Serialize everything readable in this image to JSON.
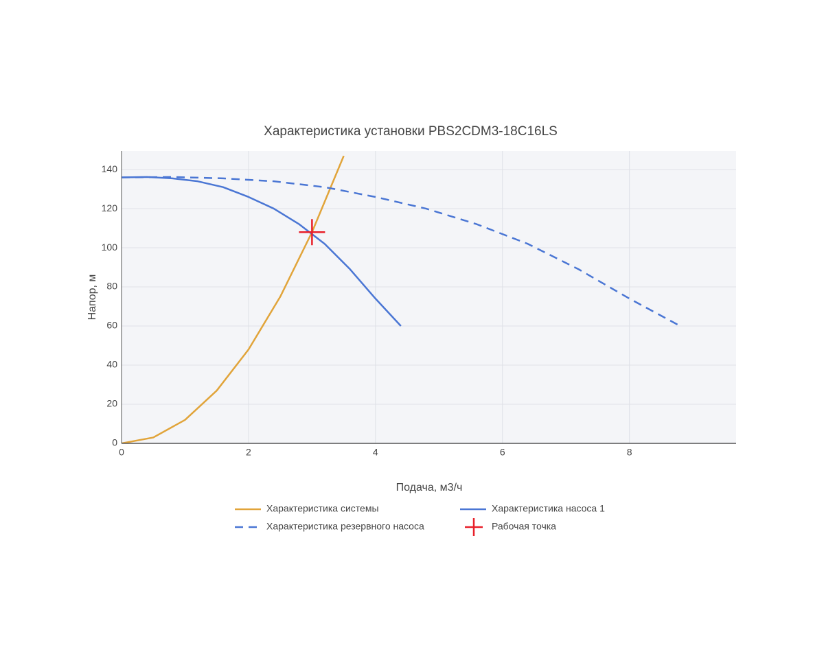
{
  "chart_data": {
    "type": "line",
    "title": "Характеристика установки PBS2CDM3-18C16LS",
    "x_label": "Подача, м3/ч",
    "y_label": "Напор, м",
    "xlim": [
      0,
      9.68
    ],
    "ylim": [
      0,
      149.5
    ],
    "xticks": [
      0,
      2,
      4,
      6,
      8
    ],
    "yticks": [
      0,
      20,
      40,
      60,
      80,
      100,
      120,
      140
    ],
    "grid": true,
    "series": [
      {
        "name": "Характеристика системы",
        "color": "#e1a43a",
        "dash": false,
        "x": [
          0,
          0.5,
          1,
          1.5,
          2,
          2.5,
          3,
          3.5
        ],
        "values": [
          0,
          3,
          12,
          27,
          48,
          75,
          108,
          147
        ]
      },
      {
        "name": "Характеристика насоса 1",
        "color": "#4a76d4",
        "dash": false,
        "x": [
          0,
          0.4,
          0.8,
          1.2,
          1.6,
          2,
          2.4,
          2.8,
          3.2,
          3.6,
          4,
          4.4
        ],
        "values": [
          136,
          136.2,
          135.5,
          134,
          131,
          126,
          120,
          112,
          102,
          89,
          74,
          60
        ]
      },
      {
        "name": "Характеристика резервного насоса",
        "color": "#4a76d4",
        "dash": true,
        "x": [
          0,
          0.8,
          1.6,
          2.4,
          3.2,
          4,
          4.8,
          5.6,
          6.4,
          7.2,
          8,
          8.8
        ],
        "values": [
          136,
          136.2,
          135.5,
          134,
          131,
          126,
          120,
          112,
          102,
          89,
          74,
          60
        ]
      },
      {
        "name": "Рабочая точка",
        "color": "#e8202a",
        "marker": "cross",
        "x": [
          3
        ],
        "values": [
          108
        ]
      }
    ]
  }
}
